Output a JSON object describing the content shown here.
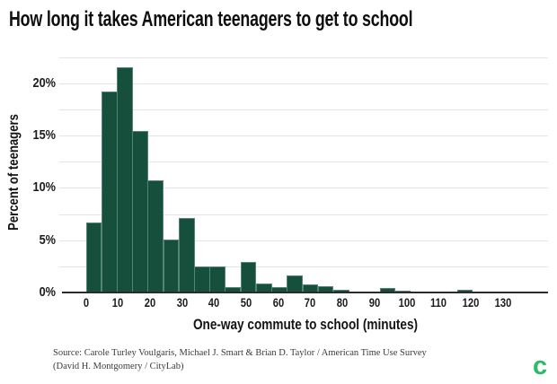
{
  "title": "How long it takes American teenagers to get to school",
  "source": {
    "line1": "Source: Carole Turley Voulgaris, Michael J. Smart & Brian D. Taylor / American Time Use Survey",
    "line2": "(David H. Montgomery / CityLab)"
  },
  "logo": {
    "letter": "c"
  },
  "colors": {
    "bar": "#16503d",
    "bar_edge": "#afd7c3",
    "grid": "#e4e4e4",
    "axis": "#2b2b2b",
    "text": "#1a1a1a",
    "source_text": "#3b3b3b",
    "logo_green": "#2dba69"
  },
  "chart_data": {
    "type": "bar",
    "subtype": "histogram",
    "title": "How long it takes American teenagers to get to school",
    "xlabel": "One-way commute to school (minutes)",
    "ylabel": "Percent of teenagers",
    "bin_start_minutes": 0,
    "bin_width_minutes": 4.82,
    "bins_pct": [
      6.7,
      19.2,
      21.5,
      15.45,
      10.7,
      5.1,
      7.1,
      2.5,
      2.5,
      0.55,
      2.95,
      0.9,
      0.5,
      1.65,
      0.75,
      0.6,
      0.25,
      0.1,
      0.12,
      0.4,
      0.18,
      0.1,
      0.08,
      0,
      0.28,
      0,
      0,
      0
    ],
    "x_ticks": [
      0,
      10,
      20,
      30,
      40,
      50,
      60,
      70,
      80,
      90,
      100,
      110,
      120,
      130
    ],
    "y_ticks": [
      0,
      5,
      10,
      15,
      20
    ],
    "y_tick_suffix": "%",
    "xlim": [
      -8.3,
      144.1
    ],
    "ylim": [
      0,
      22.8
    ],
    "grid_step_pct": 2.5,
    "grid": "on",
    "legend": "none"
  }
}
